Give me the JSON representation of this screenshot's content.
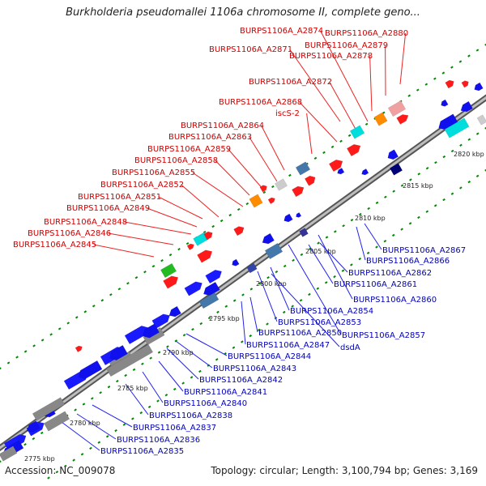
{
  "title": "Burkholderia pseudomallei 1106a chromosome II, complete geno...",
  "footer": {
    "accession": "Accession: NC_009078",
    "summary": "Topology: circular; Length: 3,100,794 bp; Genes: 3,169"
  },
  "colors": {
    "forward_label": "#cc0000",
    "reverse_label": "#0000bb",
    "forward_gene": "#ff0000",
    "reverse_gene": "#0000ee",
    "backbone": "#999999",
    "tick": "#008800"
  },
  "ticks": [
    {
      "label": "2775 kbp"
    },
    {
      "label": "2780 kbp"
    },
    {
      "label": "2785 kbp"
    },
    {
      "label": "2790 kbp"
    },
    {
      "label": "2795 kbp"
    },
    {
      "label": "2800 kbp"
    },
    {
      "label": "2805 kbp"
    },
    {
      "label": "2810 kbp"
    },
    {
      "label": "2815 kbp"
    },
    {
      "label": "2820 kbp"
    }
  ],
  "forward_labels": [
    "BURPS1106A_A2874",
    "BURPS1106A_A2880",
    "BURPS1106A_A2879",
    "BURPS1106A_A2871",
    "BURPS1106A_A2878",
    "BURPS1106A_A2872",
    "BURPS1106A_A2868",
    "iscS-2",
    "BURPS1106A_A2864",
    "BURPS1106A_A2863",
    "BURPS1106A_A2859",
    "BURPS1106A_A2858",
    "BURPS1106A_A2855",
    "BURPS1106A_A2852",
    "BURPS1106A_A2851",
    "BURPS1106A_A2849",
    "BURPS1106A_A2848",
    "BURPS1106A_A2846",
    "BURPS1106A_A2845"
  ],
  "reverse_labels": [
    "BURPS1106A_A2867",
    "BURPS1106A_A2866",
    "BURPS1106A_A2862",
    "BURPS1106A_A2861",
    "BURPS1106A_A2860",
    "BURPS1106A_A2854",
    "BURPS1106A_A2853",
    "BURPS1106A_A2857",
    "BURPS1106A_A2850",
    "BURPS1106A_A2847",
    "dsdA",
    "BURPS1106A_A2844",
    "BURPS1106A_A2843",
    "BURPS1106A_A2842",
    "BURPS1106A_A2841",
    "BURPS1106A_A2840",
    "BURPS1106A_A2838",
    "BURPS1106A_A2837",
    "BURPS1106A_A2836",
    "BURPS1106A_A2835"
  ]
}
